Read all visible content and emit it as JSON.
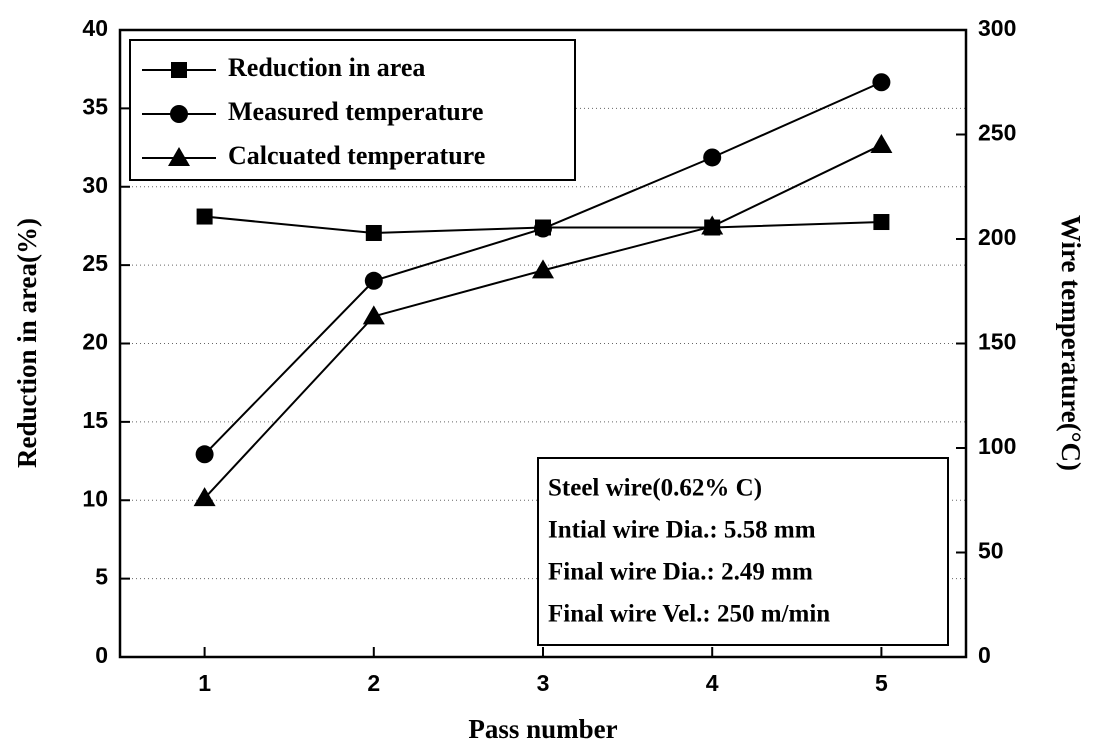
{
  "chart_data": {
    "type": "line",
    "x_label": "Pass number",
    "y_label": "Reduction in area(%)",
    "y2_label": "Wire temperature(°C)",
    "x": [
      1,
      2,
      3,
      4,
      5
    ],
    "xlim": [
      0.5,
      5.5
    ],
    "xticks": [
      1,
      2,
      3,
      4,
      5
    ],
    "ylim": [
      0,
      40
    ],
    "yticks": [
      0,
      5,
      10,
      15,
      20,
      25,
      30,
      35,
      40
    ],
    "y2lim": [
      0,
      300
    ],
    "y2ticks": [
      0,
      50,
      100,
      150,
      200,
      250,
      300
    ],
    "grid": true,
    "legend": "upper left",
    "series": [
      {
        "name": "Reduction in area",
        "color": "#000000",
        "marker": "square",
        "values": [
          28.1,
          27.05,
          27.4,
          27.4,
          27.75
        ]
      },
      {
        "name": "Measured temperature",
        "color": "#000000",
        "marker": "circle",
        "axis": "y2",
        "values": [
          97,
          180,
          205,
          239,
          275
        ]
      },
      {
        "name": "Calcuated temperature",
        "color": "#000000",
        "marker": "triangle",
        "axis": "y2",
        "values": [
          76,
          163,
          185,
          206,
          245
        ]
      }
    ],
    "annotation": [
      "Steel wire(0.62% C)",
      "Intial wire Dia.: 5.58 mm",
      "Final wire Dia.: 2.49 mm",
      "Final wire Vel.: 250 m/min"
    ]
  }
}
